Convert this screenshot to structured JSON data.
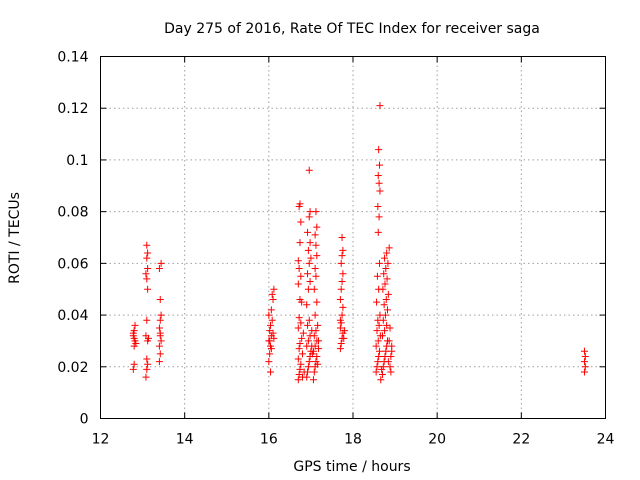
{
  "chart_data": {
    "type": "scatter",
    "title": "Day 275 of 2016, Rate Of TEC Index for receiver saga",
    "xlabel": "GPS time / hours",
    "ylabel": "ROTI / TECUs",
    "xlim": [
      12,
      24
    ],
    "ylim": [
      0,
      0.14
    ],
    "xticks": [
      12,
      14,
      16,
      18,
      20,
      22,
      24
    ],
    "xtick_labels": [
      "12",
      "14",
      "16",
      "18",
      "20",
      "22",
      "24"
    ],
    "yticks": [
      0,
      0.02,
      0.04,
      0.06,
      0.08,
      0.1,
      0.12,
      0.14
    ],
    "ytick_labels": [
      "0",
      "0.02",
      "0.04",
      "0.06",
      "0.08",
      "0.1",
      "0.12",
      "0.14"
    ],
    "grid": true,
    "marker": "plus",
    "color": "#ff0000",
    "series": [
      {
        "name": "ROTI",
        "points": [
          [
            12.78,
            0.019
          ],
          [
            12.8,
            0.021
          ],
          [
            12.8,
            0.028
          ],
          [
            12.82,
            0.03
          ],
          [
            12.78,
            0.032
          ],
          [
            12.8,
            0.034
          ],
          [
            12.82,
            0.036
          ],
          [
            12.8,
            0.031
          ],
          [
            12.84,
            0.029
          ],
          [
            12.78,
            0.033
          ],
          [
            13.08,
            0.016
          ],
          [
            13.1,
            0.019
          ],
          [
            13.12,
            0.021
          ],
          [
            13.1,
            0.023
          ],
          [
            13.12,
            0.03
          ],
          [
            13.08,
            0.032
          ],
          [
            13.1,
            0.038
          ],
          [
            13.12,
            0.05
          ],
          [
            13.1,
            0.054
          ],
          [
            13.08,
            0.056
          ],
          [
            13.12,
            0.058
          ],
          [
            13.1,
            0.062
          ],
          [
            13.12,
            0.064
          ],
          [
            13.1,
            0.067
          ],
          [
            13.14,
            0.031
          ],
          [
            13.4,
            0.022
          ],
          [
            13.42,
            0.025
          ],
          [
            13.4,
            0.028
          ],
          [
            13.44,
            0.03
          ],
          [
            13.42,
            0.033
          ],
          [
            13.4,
            0.035
          ],
          [
            13.42,
            0.038
          ],
          [
            13.44,
            0.04
          ],
          [
            13.42,
            0.046
          ],
          [
            13.4,
            0.058
          ],
          [
            13.44,
            0.06
          ],
          [
            13.42,
            0.032
          ],
          [
            16.0,
            0.022
          ],
          [
            16.02,
            0.025
          ],
          [
            16.04,
            0.028
          ],
          [
            16.0,
            0.03
          ],
          [
            16.06,
            0.032
          ],
          [
            16.02,
            0.034
          ],
          [
            16.04,
            0.036
          ],
          [
            16.08,
            0.038
          ],
          [
            16.0,
            0.04
          ],
          [
            16.06,
            0.042
          ],
          [
            16.1,
            0.046
          ],
          [
            16.08,
            0.048
          ],
          [
            16.12,
            0.05
          ],
          [
            16.04,
            0.018
          ],
          [
            16.1,
            0.033
          ],
          [
            16.06,
            0.027
          ],
          [
            16.02,
            0.03
          ],
          [
            16.12,
            0.031
          ],
          [
            16.7,
            0.015
          ],
          [
            16.72,
            0.017
          ],
          [
            16.74,
            0.019
          ],
          [
            16.76,
            0.021
          ],
          [
            16.7,
            0.023
          ],
          [
            16.8,
            0.025
          ],
          [
            16.72,
            0.027
          ],
          [
            16.74,
            0.029
          ],
          [
            16.78,
            0.031
          ],
          [
            16.82,
            0.033
          ],
          [
            16.7,
            0.035
          ],
          [
            16.76,
            0.037
          ],
          [
            16.72,
            0.039
          ],
          [
            16.74,
            0.046
          ],
          [
            16.7,
            0.052
          ],
          [
            16.76,
            0.055
          ],
          [
            16.72,
            0.058
          ],
          [
            16.7,
            0.061
          ],
          [
            16.74,
            0.068
          ],
          [
            16.76,
            0.076
          ],
          [
            16.72,
            0.082
          ],
          [
            16.74,
            0.083
          ],
          [
            16.78,
            0.045
          ],
          [
            16.8,
            0.016
          ],
          [
            16.84,
            0.018
          ],
          [
            16.9,
            0.016
          ],
          [
            16.92,
            0.018
          ],
          [
            16.94,
            0.02
          ],
          [
            16.96,
            0.022
          ],
          [
            16.98,
            0.024
          ],
          [
            17.0,
            0.026
          ],
          [
            16.9,
            0.028
          ],
          [
            16.94,
            0.03
          ],
          [
            16.98,
            0.032
          ],
          [
            17.02,
            0.034
          ],
          [
            16.92,
            0.036
          ],
          [
            16.96,
            0.038
          ],
          [
            16.9,
            0.044
          ],
          [
            16.94,
            0.05
          ],
          [
            16.98,
            0.053
          ],
          [
            16.92,
            0.056
          ],
          [
            16.96,
            0.06
          ],
          [
            17.0,
            0.062
          ],
          [
            16.94,
            0.065
          ],
          [
            16.98,
            0.068
          ],
          [
            16.92,
            0.072
          ],
          [
            16.96,
            0.078
          ],
          [
            16.98,
            0.08
          ],
          [
            16.96,
            0.096
          ],
          [
            17.02,
            0.028
          ],
          [
            17.04,
            0.025
          ],
          [
            17.06,
            0.015
          ],
          [
            17.08,
            0.018
          ],
          [
            17.1,
            0.02
          ],
          [
            17.12,
            0.022
          ],
          [
            17.14,
            0.024
          ],
          [
            17.06,
            0.026
          ],
          [
            17.1,
            0.028
          ],
          [
            17.14,
            0.03
          ],
          [
            17.08,
            0.032
          ],
          [
            17.12,
            0.034
          ],
          [
            17.16,
            0.036
          ],
          [
            17.1,
            0.04
          ],
          [
            17.14,
            0.045
          ],
          [
            17.08,
            0.05
          ],
          [
            17.12,
            0.055
          ],
          [
            17.1,
            0.058
          ],
          [
            17.14,
            0.063
          ],
          [
            17.12,
            0.067
          ],
          [
            17.1,
            0.071
          ],
          [
            17.14,
            0.074
          ],
          [
            17.12,
            0.08
          ],
          [
            17.18,
            0.027
          ],
          [
            17.16,
            0.021
          ],
          [
            17.18,
            0.03
          ],
          [
            17.7,
            0.027
          ],
          [
            17.72,
            0.029
          ],
          [
            17.74,
            0.031
          ],
          [
            17.76,
            0.033
          ],
          [
            17.7,
            0.035
          ],
          [
            17.72,
            0.037
          ],
          [
            17.74,
            0.04
          ],
          [
            17.76,
            0.043
          ],
          [
            17.7,
            0.046
          ],
          [
            17.72,
            0.05
          ],
          [
            17.74,
            0.053
          ],
          [
            17.76,
            0.056
          ],
          [
            17.72,
            0.06
          ],
          [
            17.74,
            0.063
          ],
          [
            17.76,
            0.065
          ],
          [
            17.74,
            0.07
          ],
          [
            17.8,
            0.034
          ],
          [
            17.78,
            0.031
          ],
          [
            17.7,
            0.038
          ],
          [
            18.55,
            0.018
          ],
          [
            18.57,
            0.02
          ],
          [
            18.59,
            0.022
          ],
          [
            18.61,
            0.024
          ],
          [
            18.63,
            0.026
          ],
          [
            18.55,
            0.028
          ],
          [
            18.6,
            0.03
          ],
          [
            18.65,
            0.032
          ],
          [
            18.57,
            0.034
          ],
          [
            18.62,
            0.036
          ],
          [
            18.59,
            0.038
          ],
          [
            18.64,
            0.04
          ],
          [
            18.56,
            0.045
          ],
          [
            18.61,
            0.05
          ],
          [
            18.58,
            0.055
          ],
          [
            18.63,
            0.06
          ],
          [
            18.6,
            0.072
          ],
          [
            18.62,
            0.078
          ],
          [
            18.59,
            0.082
          ],
          [
            18.64,
            0.088
          ],
          [
            18.62,
            0.091
          ],
          [
            18.6,
            0.094
          ],
          [
            18.63,
            0.098
          ],
          [
            18.61,
            0.104
          ],
          [
            18.64,
            0.121
          ],
          [
            18.66,
            0.015
          ],
          [
            18.68,
            0.019
          ],
          [
            18.7,
            0.017
          ],
          [
            18.72,
            0.02
          ],
          [
            18.74,
            0.022
          ],
          [
            18.76,
            0.024
          ],
          [
            18.78,
            0.026
          ],
          [
            18.8,
            0.028
          ],
          [
            18.82,
            0.03
          ],
          [
            18.7,
            0.032
          ],
          [
            18.75,
            0.034
          ],
          [
            18.8,
            0.036
          ],
          [
            18.72,
            0.038
          ],
          [
            18.77,
            0.04
          ],
          [
            18.82,
            0.042
          ],
          [
            18.74,
            0.044
          ],
          [
            18.79,
            0.046
          ],
          [
            18.84,
            0.048
          ],
          [
            18.71,
            0.05
          ],
          [
            18.76,
            0.052
          ],
          [
            18.81,
            0.054
          ],
          [
            18.73,
            0.056
          ],
          [
            18.78,
            0.058
          ],
          [
            18.83,
            0.06
          ],
          [
            18.75,
            0.062
          ],
          [
            18.8,
            0.064
          ],
          [
            18.86,
            0.066
          ],
          [
            18.88,
            0.02
          ],
          [
            18.9,
            0.024
          ],
          [
            18.92,
            0.028
          ],
          [
            18.86,
            0.03
          ],
          [
            18.9,
            0.018
          ],
          [
            18.88,
            0.035
          ],
          [
            18.92,
            0.026
          ],
          [
            18.84,
            0.022
          ],
          [
            23.5,
            0.018
          ],
          [
            23.52,
            0.02
          ],
          [
            23.5,
            0.022
          ],
          [
            23.52,
            0.024
          ],
          [
            23.5,
            0.026
          ]
        ]
      }
    ]
  }
}
